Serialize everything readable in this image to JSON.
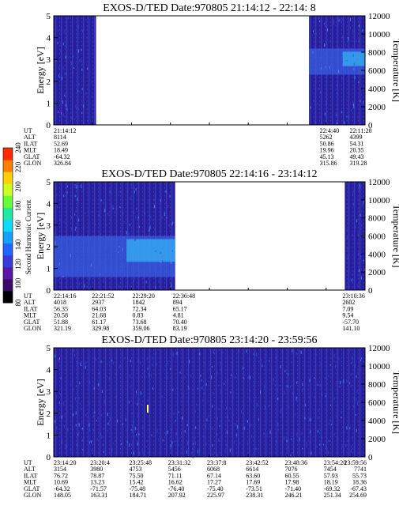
{
  "colors": {
    "background": "#2a1f9e",
    "band_light": "#3a5fe0",
    "band_mid": "#2f3fcc",
    "bright": "#33d6ff",
    "spot": "#ffff66"
  },
  "colorbar": {
    "label": "Second Harmonic Current",
    "ticks": [
      "80",
      "100",
      "120",
      "140",
      "160",
      "180",
      "200",
      "220",
      "240"
    ],
    "colors": [
      "#000000",
      "#3a0a6a",
      "#5a16a8",
      "#3a3ad8",
      "#1f66ff",
      "#16a0ff",
      "#12d8ff",
      "#22e8a0",
      "#66ff33",
      "#ccff22",
      "#ffd000",
      "#ff8000",
      "#ff2a00"
    ]
  },
  "chart_data": [
    {
      "type": "heatmap",
      "title": "EXOS-D/TED   Date:970805  21:14:12 - 22:14: 8",
      "ylabel": "Energy [eV]",
      "y2label": "Temperature [K]",
      "yticks": [
        "0",
        "1",
        "2",
        "3",
        "4",
        "5"
      ],
      "y2ticks": [
        "0",
        "2000",
        "4000",
        "6000",
        "8000",
        "10000",
        "12000"
      ],
      "ylim": [
        0,
        5
      ],
      "y2lim": [
        0,
        12000
      ],
      "data_spans": [
        [
          0,
          0.136
        ],
        [
          0.82,
          1.0
        ]
      ],
      "bands": [
        {
          "span_index": 1,
          "from": 2.3,
          "to": 3.5
        }
      ],
      "ephemeris": {
        "labels": [
          "UT",
          "ALT",
          "ILAT",
          "MLT",
          "GLAT",
          "GLON"
        ],
        "columns": [
          {
            "frac": 0.0,
            "values": [
              "21:14:12",
              "8114",
              "52.69",
              "18.49",
              "-64.32",
              "326.84"
            ]
          },
          {
            "frac": 0.862,
            "values": [
              "22:4:40",
              "5262",
              "50.86",
              "19.96",
              "45.13",
              "315.86"
            ]
          },
          {
            "frac": 0.958,
            "values": [
              "22:11:28",
              "4399",
              "54.31",
              "20.35",
              "49.43",
              "319.28"
            ]
          }
        ]
      }
    },
    {
      "type": "heatmap",
      "title": "EXOS-D/TED   Date:970805  22:14:16 - 23:14:12",
      "ylabel": "Energy [eV]",
      "y2label": "Temperature [K]",
      "yticks": [
        "0",
        "1",
        "2",
        "3",
        "4",
        "5"
      ],
      "y2ticks": [
        "0",
        "2000",
        "4000",
        "6000",
        "8000",
        "10000",
        "12000"
      ],
      "ylim": [
        0,
        5
      ],
      "y2lim": [
        0,
        12000
      ],
      "data_spans": [
        [
          0,
          0.39
        ],
        [
          0.935,
          1.0
        ]
      ],
      "bands": [
        {
          "span_index": 0,
          "from": 0.6,
          "to": 2.5
        }
      ],
      "ephemeris": {
        "labels": [
          "UT",
          "ALT",
          "ILAT",
          "MLT",
          "GLAT",
          "GLON"
        ],
        "columns": [
          {
            "frac": 0.0,
            "values": [
              "22:14:16",
              "4018",
              "56.35",
              "20.58",
              "51.88",
              "321.19"
            ]
          },
          {
            "frac": 0.13,
            "values": [
              "22:21:52",
              "2937",
              "64.03",
              "21.68",
              "61.17",
              "329.98"
            ]
          },
          {
            "frac": 0.26,
            "values": [
              "22:29:20",
              "1842",
              "72.34",
              "0.83",
              "73.68",
              "359.06"
            ]
          },
          {
            "frac": 0.39,
            "values": [
              "22:36:48",
              "894",
              "65.17",
              "4.81",
              "70.40",
              "83.19"
            ]
          },
          {
            "frac": 0.935,
            "values": [
              "23:10:36",
              "2602",
              "7.09",
              "9.54",
              "-57.70",
              "141.10"
            ]
          }
        ]
      }
    },
    {
      "type": "heatmap",
      "title": "EXOS-D/TED   Date:970805  23:14:20 - 23:59:56",
      "ylabel": "Energy [eV]",
      "y2label": "Temperature [K]",
      "yticks": [
        "0",
        "1",
        "2",
        "3",
        "4",
        "5"
      ],
      "y2ticks": [
        "0",
        "2000",
        "4000",
        "6000",
        "8000",
        "10000",
        "12000"
      ],
      "ylim": [
        0,
        5
      ],
      "y2lim": [
        0,
        12000
      ],
      "data_spans": [
        [
          0,
          1.0
        ]
      ],
      "bands": [],
      "ephemeris": {
        "labels": [
          "UT",
          "ALT",
          "ILAT",
          "MLT",
          "GLAT",
          "GLON"
        ],
        "columns": [
          {
            "frac": 0.0,
            "values": [
              "23:14:20",
              "3154",
              "76.72",
              "10.69",
              "-64.32",
              "148.05"
            ]
          },
          {
            "frac": 0.125,
            "values": [
              "23:20:4",
              "3980",
              "78.87",
              "13.23",
              "-71.57",
              "163.31"
            ]
          },
          {
            "frac": 0.25,
            "values": [
              "23:25:48",
              "4753",
              "75.50",
              "15.42",
              "-75.48",
              "184.71"
            ]
          },
          {
            "frac": 0.375,
            "values": [
              "23:31:32",
              "5456",
              "71.11",
              "16.62",
              "-76.40",
              "207.92"
            ]
          },
          {
            "frac": 0.5,
            "values": [
              "23:37:8",
              "6068",
              "67.14",
              "17.27",
              "-75.40",
              "225.97"
            ]
          },
          {
            "frac": 0.625,
            "values": [
              "23:42:52",
              "6614",
              "63.60",
              "17.69",
              "-73.51",
              "238.31"
            ]
          },
          {
            "frac": 0.75,
            "values": [
              "23:48:36",
              "7076",
              "60.55",
              "17.98",
              "-71.40",
              "246.21"
            ]
          },
          {
            "frac": 0.875,
            "values": [
              "23:54:20",
              "7454",
              "57.93",
              "18.19",
              "-69.32",
              "251.34"
            ]
          },
          {
            "frac": 1.0,
            "values": [
              "23:59:56",
              "7741",
              "55.73",
              "18.36",
              "-67.43",
              "254.69"
            ]
          }
        ]
      }
    }
  ]
}
